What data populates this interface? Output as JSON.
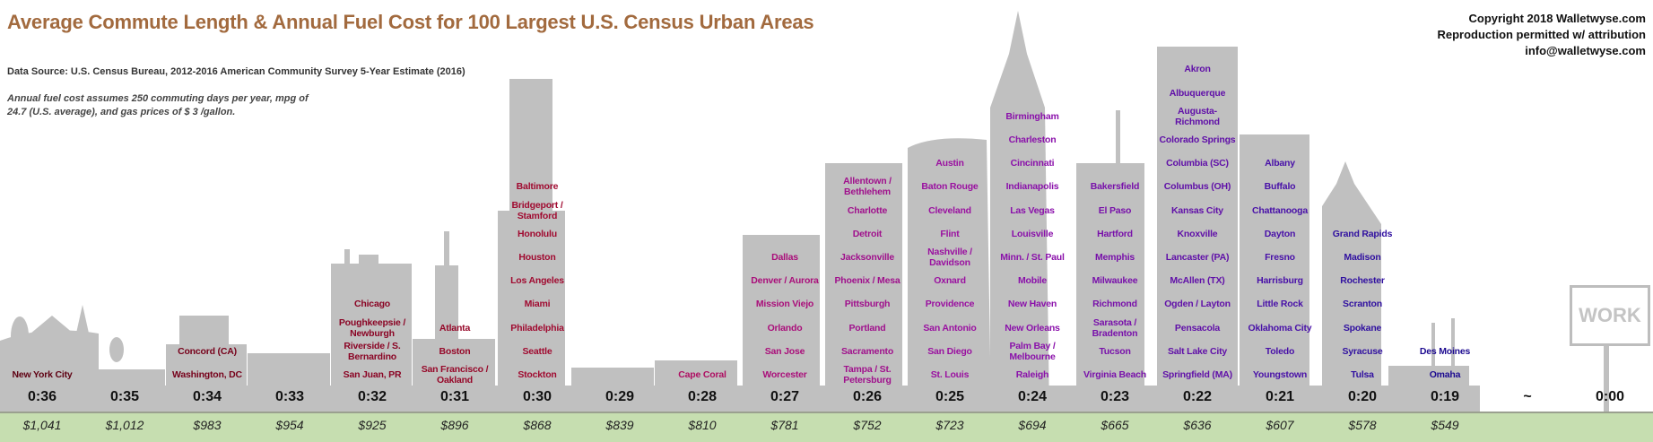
{
  "header": {
    "title": "Average Commute Length & Annual Fuel Cost for 100 Largest U.S. Census Urban Areas",
    "source": "Data Source: U.S. Census Bureau, 2012-2016 American Community Survey 5-Year Estimate (2016)",
    "note": "Annual fuel cost assumes 250 commuting days per year, mpg of 24.7 (U.S. average), and gas prices of $ 3 /gallon.",
    "copyright": [
      "Copyright 2018 Walletwyse.com",
      "Reproduction permitted w/ attribution",
      "info@walletwyse.com"
    ]
  },
  "sign": {
    "label": "WORK"
  },
  "colors": {
    "title": "#a26a3e",
    "band": "#c6deb0",
    "building": "#c0c0c0"
  },
  "chart_data": {
    "type": "table",
    "title": "Average Commute Length & Annual Fuel Cost for 100 Largest U.S. Census Urban Areas",
    "columns": [
      {
        "time": "0:36",
        "cost": "$1,041",
        "color": "#5e0012",
        "cities": [
          "New York City"
        ]
      },
      {
        "time": "0:35",
        "cost": "$1,012",
        "color": "#6a0016",
        "cities": []
      },
      {
        "time": "0:34",
        "cost": "$983",
        "color": "#76001a",
        "cities": [
          "Concord (CA)",
          "Washington, DC"
        ]
      },
      {
        "time": "0:33",
        "cost": "$954",
        "color": "#80001f",
        "cities": []
      },
      {
        "time": "0:32",
        "cost": "$925",
        "color": "#8a0424",
        "cities": [
          "Chicago",
          "Poughkeepsie / Newburgh",
          "Riverside / S. Bernardino",
          "San Juan, PR"
        ]
      },
      {
        "time": "0:31",
        "cost": "$896",
        "color": "#960829",
        "cities": [
          "Atlanta",
          "Boston",
          "San Francisco / Oakland"
        ]
      },
      {
        "time": "0:30",
        "cost": "$868",
        "color": "#a00a30",
        "cities": [
          "Baltimore",
          "Bridgeport / Stamford",
          "Honolulu",
          "Houston",
          "Los Angeles",
          "Miami",
          "Philadelphia",
          "Seattle",
          "Stockton"
        ]
      },
      {
        "time": "0:29",
        "cost": "$839",
        "color": "#a80c4a",
        "cities": []
      },
      {
        "time": "0:28",
        "cost": "$810",
        "color": "#ae0e62",
        "cities": [
          "Cape Coral"
        ]
      },
      {
        "time": "0:27",
        "cost": "$781",
        "color": "#aa0e7a",
        "cities": [
          "Dallas",
          "Denver / Aurora",
          "Mission Viejo",
          "Orlando",
          "San Jose",
          "Worcester"
        ]
      },
      {
        "time": "0:26",
        "cost": "$752",
        "color": "#a0108c",
        "cities": [
          "Allentown / Bethlehem",
          "Charlotte",
          "Detroit",
          "Jacksonville",
          "Phoenix / Mesa",
          "Pittsburgh",
          "Portland",
          "Sacramento",
          "Tampa / St. Petersburg"
        ]
      },
      {
        "time": "0:25",
        "cost": "$723",
        "color": "#9a10a0",
        "cities": [
          "Austin",
          "Baton Rouge",
          "Cleveland",
          "Flint",
          "Nashville / Davidson",
          "Oxnard",
          "Providence",
          "San Antonio",
          "San Diego",
          "St. Louis"
        ]
      },
      {
        "time": "0:24",
        "cost": "$694",
        "color": "#8a10aa",
        "cities": [
          "Birmingham",
          "Charleston",
          "Cincinnati",
          "Indianapolis",
          "Las Vegas",
          "Louisville",
          "Minn. / St. Paul",
          "Mobile",
          "New Haven",
          "New Orleans",
          "Palm Bay / Melbourne",
          "Raleigh"
        ]
      },
      {
        "time": "0:23",
        "cost": "$665",
        "color": "#7810aa",
        "cities": [
          "Bakersfield",
          "El Paso",
          "Hartford",
          "Memphis",
          "Milwaukee",
          "Richmond",
          "Sarasota / Bradenton",
          "Tucson",
          "Virginia Beach"
        ]
      },
      {
        "time": "0:22",
        "cost": "$636",
        "color": "#6010a8",
        "cities": [
          "Akron",
          "Albuquerque",
          "Augusta-Richmond",
          "Colorado Springs",
          "Columbia (SC)",
          "Columbus (OH)",
          "Kansas City",
          "Knoxville",
          "Lancaster (PA)",
          "McAllen (TX)",
          "Ogden / Layton",
          "Pensacola",
          "Salt Lake City",
          "Springfield (MA)"
        ]
      },
      {
        "time": "0:21",
        "cost": "$607",
        "color": "#4810a8",
        "cities": [
          "Albany",
          "Buffalo",
          "Chattanooga",
          "Dayton",
          "Fresno",
          "Harrisburg",
          "Little Rock",
          "Oklahoma City",
          "Toledo",
          "Youngstown"
        ]
      },
      {
        "time": "0:20",
        "cost": "$578",
        "color": "#3010a0",
        "cities": [
          "Grand Rapids",
          "Madison",
          "Rochester",
          "Scranton",
          "Spokane",
          "Syracuse",
          "Tulsa"
        ]
      },
      {
        "time": "0:19",
        "cost": "$549",
        "color": "#1c0a90",
        "cities": [
          "Des Moines",
          "Omaha"
        ]
      },
      {
        "time": "~",
        "cost": "",
        "color": "#111111",
        "cities": []
      },
      {
        "time": "0:00",
        "cost": "",
        "color": "#111111",
        "cities": []
      }
    ]
  }
}
